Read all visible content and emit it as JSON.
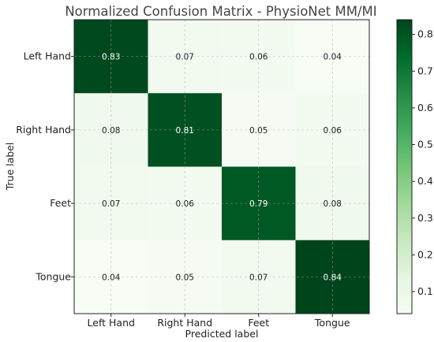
{
  "chart_data": {
    "type": "heatmap",
    "title": "Normalized Confusion Matrix - PhysioNet MM/MI",
    "xlabel": "Predicted label",
    "ylabel": "True label",
    "x_categories": [
      "Left Hand",
      "Right Hand",
      "Feet",
      "Tongue"
    ],
    "y_categories": [
      "Left Hand",
      "Right Hand",
      "Feet",
      "Tongue"
    ],
    "values": [
      [
        0.83,
        0.07,
        0.06,
        0.04
      ],
      [
        0.08,
        0.81,
        0.05,
        0.06
      ],
      [
        0.07,
        0.06,
        0.79,
        0.08
      ],
      [
        0.04,
        0.05,
        0.07,
        0.84
      ]
    ],
    "value_labels": [
      [
        "0.83",
        "0.07",
        "0.06",
        "0.04"
      ],
      [
        "0.08",
        "0.81",
        "0.05",
        "0.06"
      ],
      [
        "0.07",
        "0.06",
        "0.79",
        "0.08"
      ],
      [
        "0.04",
        "0.05",
        "0.07",
        "0.84"
      ]
    ],
    "colormap": "Greens",
    "color_range": [
      0.04,
      0.84
    ],
    "colorbar_ticks": [
      0.1,
      0.2,
      0.3,
      0.4,
      0.5,
      0.6,
      0.7,
      0.8
    ],
    "colorbar_tick_labels": [
      "0.1",
      "0.2",
      "0.3",
      "0.4",
      "0.5",
      "0.6",
      "0.7",
      "0.8"
    ],
    "grid": true
  }
}
